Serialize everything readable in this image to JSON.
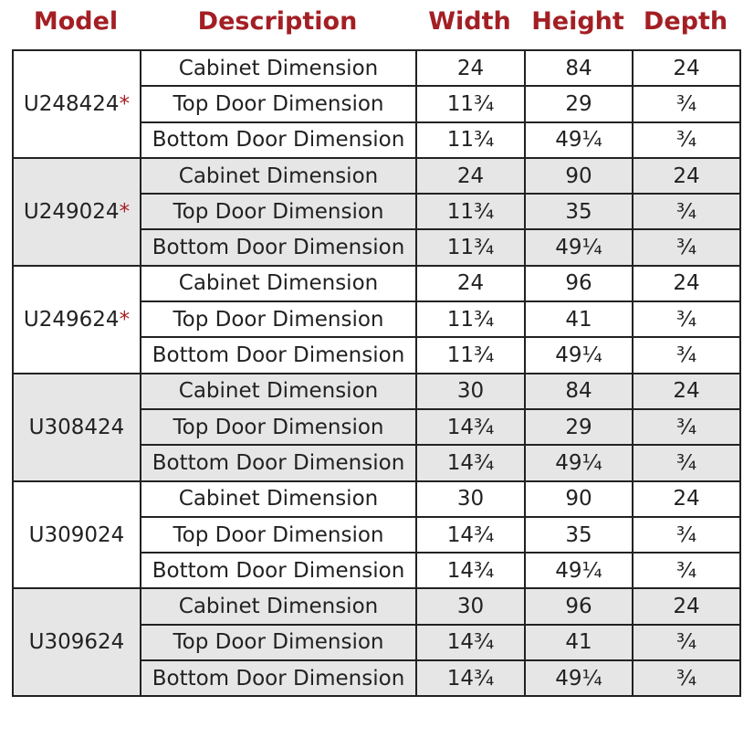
{
  "headers": {
    "model": "Model",
    "description": "Description",
    "width": "Width",
    "height": "Height",
    "depth": "Depth"
  },
  "colors": {
    "header": "#a31f24",
    "asterisk": "#a31f24",
    "band": "#e6e6e6"
  },
  "models": [
    {
      "model": "U248424",
      "asterisk": "*",
      "shaded": false,
      "rows": [
        {
          "description": "Cabinet Dimension",
          "width": "24",
          "height": "84",
          "depth": "24"
        },
        {
          "description": "Top Door Dimension",
          "width": "11¾",
          "height": "29",
          "depth": "¾"
        },
        {
          "description": "Bottom Door Dimension",
          "width": "11¾",
          "height": "49¼",
          "depth": "¾"
        }
      ]
    },
    {
      "model": "U249024",
      "asterisk": "*",
      "shaded": true,
      "rows": [
        {
          "description": "Cabinet Dimension",
          "width": "24",
          "height": "90",
          "depth": "24"
        },
        {
          "description": "Top Door Dimension",
          "width": "11¾",
          "height": "35",
          "depth": "¾"
        },
        {
          "description": "Bottom Door Dimension",
          "width": "11¾",
          "height": "49¼",
          "depth": "¾"
        }
      ]
    },
    {
      "model": "U249624",
      "asterisk": "*",
      "shaded": false,
      "rows": [
        {
          "description": "Cabinet Dimension",
          "width": "24",
          "height": "96",
          "depth": "24"
        },
        {
          "description": "Top Door Dimension",
          "width": "11¾",
          "height": "41",
          "depth": "¾"
        },
        {
          "description": "Bottom Door Dimension",
          "width": "11¾",
          "height": "49¼",
          "depth": "¾"
        }
      ]
    },
    {
      "model": "U308424",
      "asterisk": "",
      "shaded": true,
      "rows": [
        {
          "description": "Cabinet Dimension",
          "width": "30",
          "height": "84",
          "depth": "24"
        },
        {
          "description": "Top Door Dimension",
          "width": "14¾",
          "height": "29",
          "depth": "¾"
        },
        {
          "description": "Bottom Door Dimension",
          "width": "14¾",
          "height": "49¼",
          "depth": "¾"
        }
      ]
    },
    {
      "model": "U309024",
      "asterisk": "",
      "shaded": false,
      "rows": [
        {
          "description": "Cabinet Dimension",
          "width": "30",
          "height": "90",
          "depth": "24"
        },
        {
          "description": "Top Door Dimension",
          "width": "14¾",
          "height": "35",
          "depth": "¾"
        },
        {
          "description": "Bottom Door Dimension",
          "width": "14¾",
          "height": "49¼",
          "depth": "¾"
        }
      ]
    },
    {
      "model": "U309624",
      "asterisk": "",
      "shaded": true,
      "rows": [
        {
          "description": "Cabinet Dimension",
          "width": "30",
          "height": "96",
          "depth": "24"
        },
        {
          "description": "Top Door Dimension",
          "width": "14¾",
          "height": "41",
          "depth": "¾"
        },
        {
          "description": "Bottom Door Dimension",
          "width": "14¾",
          "height": "49¼",
          "depth": "¾"
        }
      ]
    }
  ]
}
